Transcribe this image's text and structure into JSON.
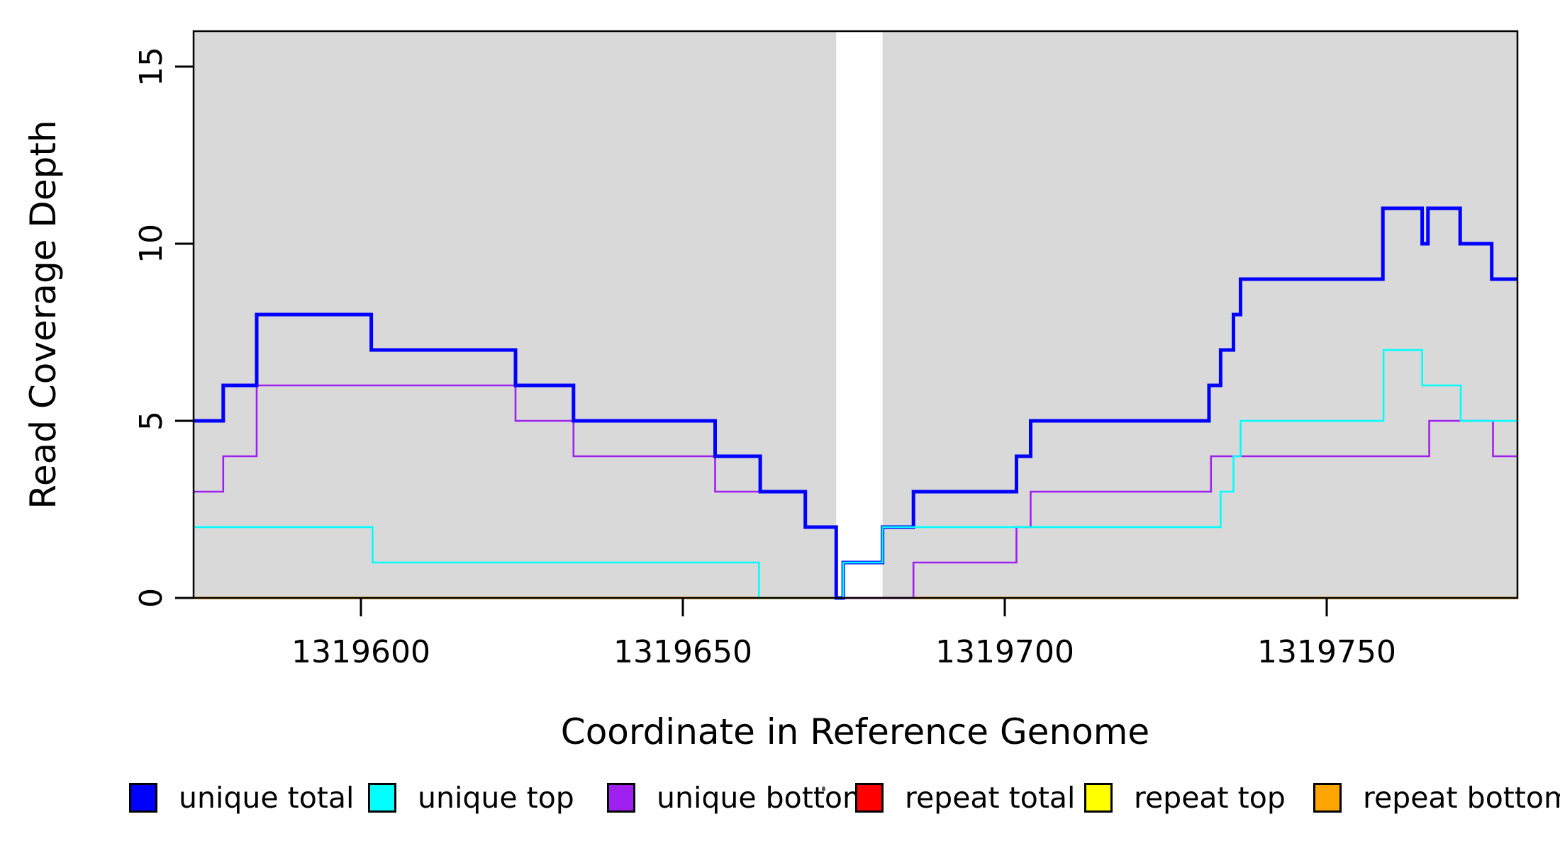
{
  "chart_data": {
    "type": "line",
    "subtype": "step-coverage-plot",
    "title": "",
    "xlabel": "Coordinate in Reference Genome",
    "ylabel": "Read Coverage Depth",
    "xlim": [
      1319574,
      1319779.6
    ],
    "ylim": [
      0,
      16
    ],
    "grid": false,
    "xticks": [
      1319600,
      1319650,
      1319700,
      1319750
    ],
    "xtick_labels": [
      "1319600",
      "1319650",
      "1319700",
      "1319750"
    ],
    "yticks": [
      0,
      5,
      10,
      15
    ],
    "ytick_labels": [
      "0",
      "5",
      "10",
      "15"
    ],
    "colors": {
      "plot_background_band": "#D9D9D9",
      "figure_background": "#FFFFFF",
      "axis": "#000000",
      "masked_gap": "#FFFFFF"
    },
    "background_bands": [
      {
        "from": 1319574,
        "to": 1319673.8
      },
      {
        "from": 1319681,
        "to": 1319779.6
      }
    ],
    "masked_gap": {
      "from": 1319673.8,
      "to": 1319681
    },
    "series": [
      {
        "name": "repeat total",
        "color": "#FF0000",
        "line_width": 3,
        "runs": [
          [
            [
              1319574,
              0
            ],
            [
              1319779.6,
              0
            ]
          ]
        ]
      },
      {
        "name": "repeat top",
        "color": "#FFFF00",
        "line_width": 3,
        "runs": [
          [
            [
              1319574,
              0
            ],
            [
              1319673.8,
              0
            ]
          ],
          [
            [
              1319685.8,
              0
            ],
            [
              1319779.6,
              0
            ]
          ]
        ]
      },
      {
        "name": "repeat bottom",
        "color": "#FFA500",
        "line_width": 3.6,
        "runs": [
          [
            [
              1319574,
              0
            ],
            [
              1319673.8,
              0
            ]
          ],
          [
            [
              1319685.8,
              0
            ],
            [
              1319779.6,
              0
            ]
          ]
        ]
      },
      {
        "name": "unique bottom",
        "color": "#A020F0",
        "line_width": 2.6,
        "runs": [
          [
            [
              1319574,
              3
            ],
            [
              1319578.6,
              4
            ],
            [
              1319583.8,
              6
            ],
            [
              1319624,
              5
            ],
            [
              1319633,
              4
            ],
            [
              1319655,
              3
            ],
            [
              1319669,
              2
            ],
            [
              1319673.8,
              0
            ],
            [
              1319685.8,
              1
            ],
            [
              1319701.8,
              2
            ],
            [
              1319704,
              3
            ],
            [
              1319732,
              4
            ],
            [
              1319765.9,
              5
            ],
            [
              1319775.8,
              4
            ],
            [
              1319779.6,
              4
            ]
          ]
        ]
      },
      {
        "name": "unique total",
        "color": "#0000FF",
        "line_width": 5,
        "runs": [
          [
            [
              1319574,
              5
            ],
            [
              1319578.6,
              6
            ],
            [
              1319583.8,
              8
            ],
            [
              1319601.6,
              7
            ],
            [
              1319624,
              6
            ],
            [
              1319633,
              5
            ],
            [
              1319655,
              4
            ],
            [
              1319662,
              3
            ],
            [
              1319669,
              2
            ],
            [
              1319673.8,
              0
            ],
            [
              1319674.9,
              1
            ],
            [
              1319681,
              2
            ],
            [
              1319685.8,
              3
            ],
            [
              1319701.8,
              4
            ],
            [
              1319704,
              5
            ],
            [
              1319731.7,
              6
            ],
            [
              1319733.5,
              7
            ],
            [
              1319735.5,
              8
            ],
            [
              1319736.6,
              9
            ],
            [
              1319758.7,
              11
            ],
            [
              1319764.8,
              10
            ],
            [
              1319765.7,
              11
            ],
            [
              1319770.7,
              10
            ],
            [
              1319775.6,
              9
            ],
            [
              1319779.6,
              9
            ]
          ]
        ]
      },
      {
        "name": "unique top",
        "color": "#00FFFF",
        "line_width": 2.6,
        "runs": [
          [
            [
              1319574,
              2
            ],
            [
              1319601.8,
              1
            ],
            [
              1319661.8,
              0
            ],
            [
              1319674.9,
              1
            ],
            [
              1319681,
              2
            ],
            [
              1319733.5,
              3
            ],
            [
              1319735.5,
              4
            ],
            [
              1319736.6,
              5
            ],
            [
              1319758.8,
              7
            ],
            [
              1319764.8,
              6
            ],
            [
              1319770.8,
              5
            ],
            [
              1319779.6,
              5
            ]
          ]
        ]
      }
    ],
    "legend": {
      "position": "bottom",
      "items": [
        {
          "label": "unique total",
          "color": "#0000FF"
        },
        {
          "label": "unique top",
          "color": "#00FFFF"
        },
        {
          "label": "unique bottom",
          "color": "#A020F0"
        },
        {
          "label": "repeat total",
          "color": "#FF0000"
        },
        {
          "label": "repeat top",
          "color": "#FFFF00"
        },
        {
          "label": "repeat bottom",
          "color": "#FFA500"
        }
      ]
    }
  }
}
